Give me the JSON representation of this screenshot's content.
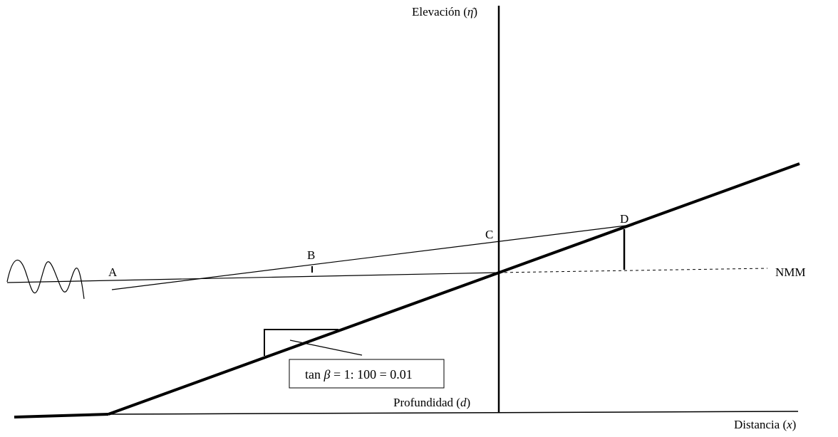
{
  "labels": {
    "elevation_text": "Elevación (",
    "elevation_symbol": "η̄",
    "elevation_close": ")",
    "depth_text": "Profundidad (",
    "depth_symbol": "d",
    "depth_close": ")",
    "distance_text": "Distancia (",
    "distance_symbol": "x",
    "distance_close": ")",
    "mean_sea_level": "NMM",
    "point_a": "A",
    "point_b": "B",
    "point_c": "C",
    "point_d": "D",
    "slope_prefix": "tan ",
    "slope_symbol": "β",
    "slope_value": " = 1: 100 = 0.01"
  },
  "colors": {
    "ink": "#000000",
    "background": "#ffffff"
  }
}
